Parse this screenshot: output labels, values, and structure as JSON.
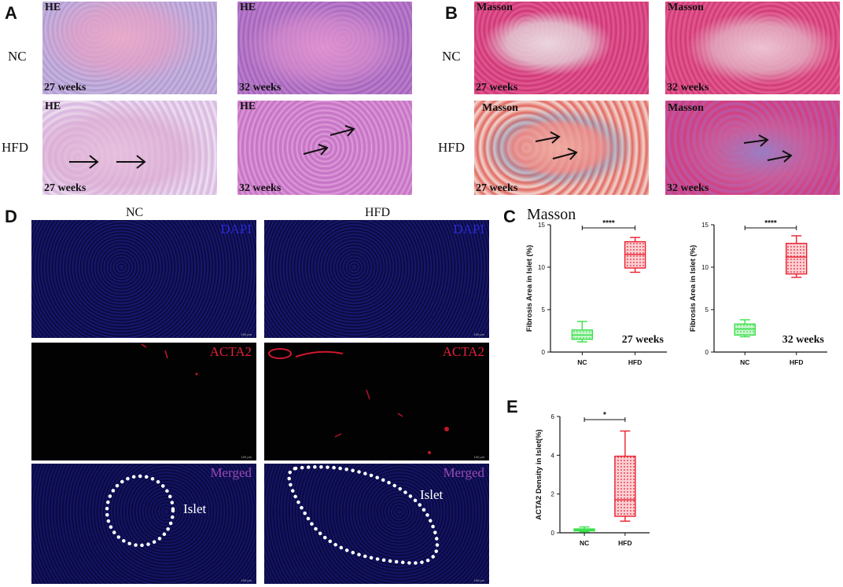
{
  "panels": {
    "A": "A",
    "B": "B",
    "C": "C",
    "D": "D",
    "E": "E"
  },
  "rows": {
    "nc": "NC",
    "hfd": "HFD"
  },
  "stains": {
    "he": "HE",
    "masson": "Masson"
  },
  "weeks": {
    "w27": "27 weeks",
    "w32": "32 weeks"
  },
  "panelD": {
    "col_nc": "NC",
    "col_hfd": "HFD",
    "dapi": "DAPI",
    "acta2": "ACTA2",
    "merged": "Merged",
    "islet": "Islet",
    "scale": "100 μm"
  },
  "panelC": {
    "title": "Masson"
  },
  "colors": {
    "nc_green": "#39e04a",
    "hfd_red": "#e8202e",
    "dapi_blue": "#2a2ad8",
    "acta2_red": "#e0203a",
    "merged_purple": "#9a4ab4"
  },
  "chart_data": [
    {
      "type": "box",
      "ylabel": "Fibrosis Area in Islet  (%)",
      "annotation": "27 weeks",
      "ylim": [
        0,
        15
      ],
      "yticks": [
        "0",
        "5",
        "10",
        "15"
      ],
      "categories": [
        "NC",
        "HFD"
      ],
      "significance": "****",
      "boxes": [
        {
          "name": "NC",
          "min": 1.2,
          "q1": 1.5,
          "median": 2.0,
          "q3": 2.6,
          "max": 3.6
        },
        {
          "name": "HFD",
          "min": 9.4,
          "q1": 9.9,
          "median": 11.5,
          "q3": 13.0,
          "max": 13.5
        }
      ]
    },
    {
      "type": "box",
      "ylabel": "Fibrosis Area in Islet  (%)",
      "annotation": "32 weeks",
      "ylim": [
        0,
        15
      ],
      "yticks": [
        "0",
        "5",
        "10",
        "15"
      ],
      "categories": [
        "NC",
        "HFD"
      ],
      "significance": "****",
      "boxes": [
        {
          "name": "NC",
          "min": 1.8,
          "q1": 2.0,
          "median": 2.7,
          "q3": 3.3,
          "max": 3.8
        },
        {
          "name": "HFD",
          "min": 8.8,
          "q1": 9.2,
          "median": 11.2,
          "q3": 12.8,
          "max": 13.7
        }
      ]
    },
    {
      "type": "box",
      "ylabel": "ACTA2 Density in Islet(%)",
      "ylim": [
        0,
        6
      ],
      "yticks": [
        "0",
        "2",
        "4",
        "6"
      ],
      "categories": [
        "NC",
        "HFD"
      ],
      "significance": "*",
      "boxes": [
        {
          "name": "NC",
          "min": 0.05,
          "q1": 0.1,
          "median": 0.15,
          "q3": 0.2,
          "max": 0.3
        },
        {
          "name": "HFD",
          "min": 0.6,
          "q1": 0.85,
          "median": 1.7,
          "q3": 3.95,
          "max": 5.25
        }
      ]
    }
  ]
}
